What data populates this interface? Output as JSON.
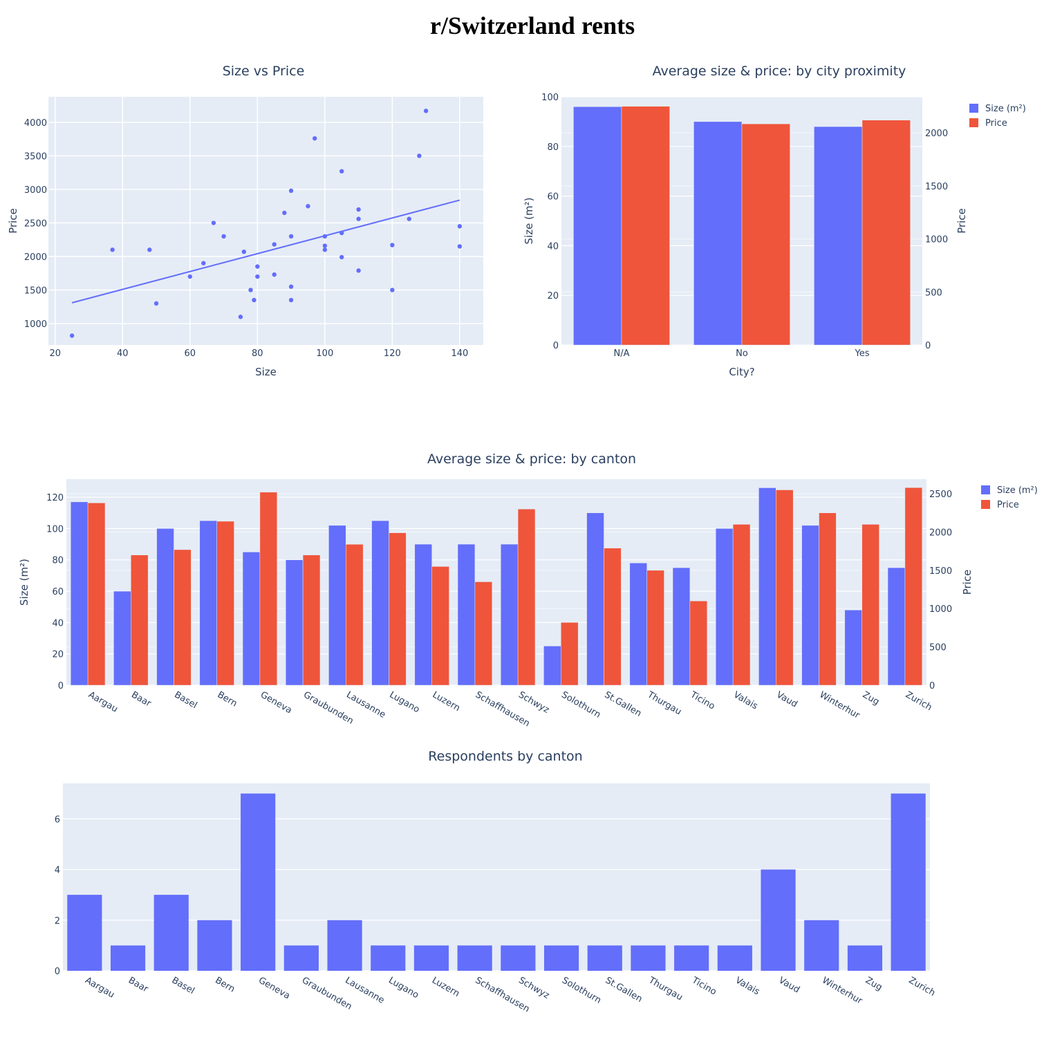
{
  "page_title": "r/Switzerland rents",
  "colors": {
    "size": "#636efa",
    "price": "#ef553b",
    "plot_bg": "#e5ecf6",
    "grid": "#ffffff",
    "text": "#2a3f5f"
  },
  "chart_data": [
    {
      "type": "scatter",
      "title": "Size vs Price",
      "xlabel": "Size",
      "ylabel": "Price",
      "xlim": [
        18,
        147
      ],
      "ylim": [
        680,
        4380
      ],
      "xticks": [
        20,
        40,
        60,
        80,
        100,
        120,
        140
      ],
      "yticks": [
        1000,
        1500,
        2000,
        2500,
        3000,
        3500,
        4000
      ],
      "grid": true,
      "points": [
        {
          "x": 25,
          "y": 820
        },
        {
          "x": 37,
          "y": 2100
        },
        {
          "x": 48,
          "y": 2100
        },
        {
          "x": 50,
          "y": 1300
        },
        {
          "x": 60,
          "y": 1700
        },
        {
          "x": 64,
          "y": 1900
        },
        {
          "x": 67,
          "y": 2500
        },
        {
          "x": 70,
          "y": 2300
        },
        {
          "x": 75,
          "y": 1100
        },
        {
          "x": 76,
          "y": 2070
        },
        {
          "x": 78,
          "y": 1500
        },
        {
          "x": 79,
          "y": 1350
        },
        {
          "x": 80,
          "y": 1850
        },
        {
          "x": 80,
          "y": 1700
        },
        {
          "x": 85,
          "y": 2180
        },
        {
          "x": 85,
          "y": 1730
        },
        {
          "x": 88,
          "y": 2650
        },
        {
          "x": 90,
          "y": 2980
        },
        {
          "x": 90,
          "y": 2300
        },
        {
          "x": 90,
          "y": 1550
        },
        {
          "x": 90,
          "y": 1350
        },
        {
          "x": 95,
          "y": 2750
        },
        {
          "x": 97,
          "y": 3760
        },
        {
          "x": 100,
          "y": 2300
        },
        {
          "x": 100,
          "y": 2160
        },
        {
          "x": 100,
          "y": 2100
        },
        {
          "x": 105,
          "y": 3270
        },
        {
          "x": 105,
          "y": 2350
        },
        {
          "x": 105,
          "y": 1990
        },
        {
          "x": 110,
          "y": 2700
        },
        {
          "x": 110,
          "y": 2560
        },
        {
          "x": 110,
          "y": 1790
        },
        {
          "x": 120,
          "y": 2170
        },
        {
          "x": 120,
          "y": 1500
        },
        {
          "x": 125,
          "y": 2560
        },
        {
          "x": 128,
          "y": 3500
        },
        {
          "x": 130,
          "y": 4170
        },
        {
          "x": 140,
          "y": 2450
        },
        {
          "x": 140,
          "y": 2150
        }
      ],
      "trendline": [
        {
          "x": 25,
          "y": 1310
        },
        {
          "x": 140,
          "y": 2840
        }
      ]
    },
    {
      "type": "bar",
      "title": "Average size & price: by city proximity",
      "xlabel": "City?",
      "ylabel": "Size (m²)",
      "y2label": "Price",
      "categories": [
        "N/A",
        "No",
        "Yes"
      ],
      "ylim": [
        0,
        100
      ],
      "y2lim": [
        0,
        2340
      ],
      "yticks": [
        0,
        20,
        40,
        60,
        80,
        100
      ],
      "y2ticks": [
        0,
        500,
        1000,
        1500,
        2000
      ],
      "series": [
        {
          "name": "Size (m²)",
          "axis": "y",
          "values": [
            96,
            90,
            88
          ]
        },
        {
          "name": "Price",
          "axis": "y2",
          "values": [
            2250,
            2085,
            2120
          ]
        }
      ],
      "legend": "top-right"
    },
    {
      "type": "bar",
      "title": "Average size & price: by canton",
      "xlabel": "",
      "ylabel": "Size (m²)",
      "y2label": "Price",
      "categories": [
        "Aargau",
        "Baar",
        "Basel",
        "Bern",
        "Geneva",
        "Graubunden",
        "Lausanne",
        "Lugano",
        "Luzern",
        "Schaffhausen",
        "Schwyz",
        "Solothurn",
        "St.Gallen",
        "Thurgau",
        "Ticino",
        "Valais",
        "Vaud",
        "Winterhur",
        "Zug",
        "Zurich"
      ],
      "ylim": [
        0,
        131.5
      ],
      "y2lim": [
        0,
        2690
      ],
      "yticks": [
        0,
        20,
        40,
        60,
        80,
        100,
        120
      ],
      "y2ticks": [
        0,
        500,
        1000,
        1500,
        2000,
        2500
      ],
      "series": [
        {
          "name": "Size (m²)",
          "axis": "y",
          "values": [
            117,
            60,
            100,
            105,
            85,
            80,
            102,
            105,
            90,
            90,
            90,
            25,
            110,
            78,
            75,
            100,
            126,
            102,
            48,
            75
          ]
        },
        {
          "name": "Price",
          "axis": "y2",
          "values": [
            2380,
            1700,
            1770,
            2140,
            2520,
            1700,
            1840,
            1990,
            1550,
            1350,
            2300,
            820,
            1790,
            1500,
            1100,
            2100,
            2550,
            2250,
            2100,
            2580
          ]
        }
      ],
      "legend": "top-right"
    },
    {
      "type": "bar",
      "title": "Respondents by canton",
      "xlabel": "",
      "ylabel": "",
      "categories": [
        "Aargau",
        "Baar",
        "Basel",
        "Bern",
        "Geneva",
        "Graubunden",
        "Lausanne",
        "Lugano",
        "Luzern",
        "Schaffhausen",
        "Schwyz",
        "Solothurn",
        "St.Gallen",
        "Thurgau",
        "Ticino",
        "Valais",
        "Vaud",
        "Winterhur",
        "Zug",
        "Zurich"
      ],
      "ylim": [
        0,
        7.4
      ],
      "yticks": [
        0,
        2,
        4,
        6
      ],
      "series": [
        {
          "name": "",
          "values": [
            3,
            1,
            3,
            2,
            7,
            1,
            2,
            1,
            1,
            1,
            1,
            1,
            1,
            1,
            1,
            1,
            4,
            2,
            1,
            7
          ]
        }
      ]
    }
  ]
}
